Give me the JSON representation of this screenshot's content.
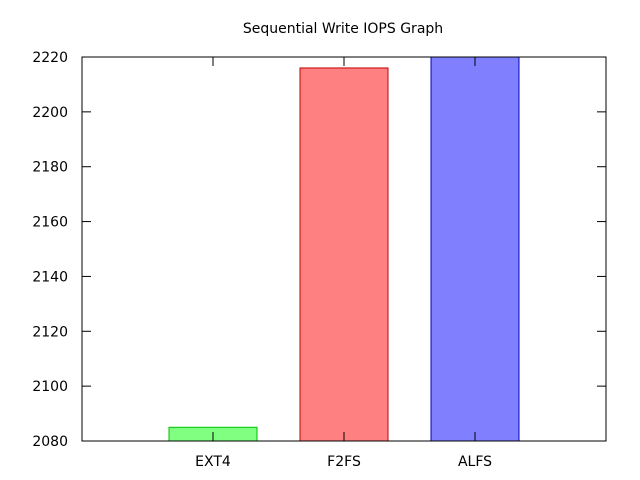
{
  "chart_data": {
    "type": "bar",
    "title": "Sequential Write IOPS Graph",
    "xlabel": "",
    "ylabel": "",
    "categories": [
      "EXT4",
      "F2FS",
      "ALFS"
    ],
    "values": [
      2085,
      2216,
      2220
    ],
    "colors": [
      "#80ff80",
      "#ff8080",
      "#8080ff"
    ],
    "edge_colors": [
      "#00c000",
      "#c00000",
      "#0000c0"
    ],
    "ylim": [
      2080,
      2220
    ],
    "yticks": [
      2080,
      2100,
      2120,
      2140,
      2160,
      2180,
      2200,
      2220
    ],
    "grid": false,
    "legend": "none"
  }
}
